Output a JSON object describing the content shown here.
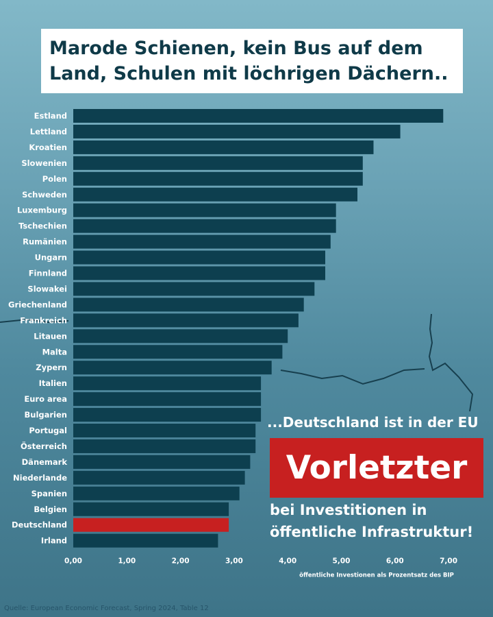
{
  "header": {
    "title_line1": "Marode Schienen, kein Bus auf dem",
    "title_line2": "Land, Schulen mit löchrigen Dächern.."
  },
  "chart_data": {
    "type": "bar",
    "orientation": "horizontal",
    "categories": [
      "Estland",
      "Lettland",
      "Kroatien",
      "Slowenien",
      "Polen",
      "Schweden",
      "Luxemburg",
      "Tschechien",
      "Rumänien",
      "Ungarn",
      "Finnland",
      "Slowakei",
      "Griechenland",
      "Frankreich",
      "Litauen",
      "Malta",
      "Zypern",
      "Italien",
      "Euro area",
      "Bulgarien",
      "Portugal",
      "Österreich",
      "Dänemark",
      "Niederlande",
      "Spanien",
      "Belgien",
      "Deutschland",
      "Irland"
    ],
    "values": [
      6.9,
      6.1,
      5.6,
      5.4,
      5.4,
      5.3,
      4.9,
      4.9,
      4.8,
      4.7,
      4.7,
      4.5,
      4.3,
      4.2,
      4.0,
      3.9,
      3.7,
      3.5,
      3.5,
      3.5,
      3.4,
      3.4,
      3.3,
      3.2,
      3.1,
      2.9,
      2.9,
      2.7
    ],
    "highlight": "Deutschland",
    "xlabel": "öffentliche Investionen als Prozentsatz des BIP",
    "xlim": [
      0,
      7
    ],
    "xticks": [
      "0,00",
      "1,00",
      "2,00",
      "3,00",
      "4,00",
      "5,00",
      "6,00",
      "7,00"
    ],
    "grid": false,
    "legend": "none",
    "colors": {
      "bar": "#0d3f4f",
      "highlight": "#c72020",
      "label": "#ffffff"
    }
  },
  "callout": {
    "headline": "...Deutschland ist in der EU",
    "big": "Vorletzter",
    "line1": "bei Investitionen in",
    "line2": "öffentliche Infrastruktur!"
  },
  "source": "Quelle: European Economic Forecast, Spring 2024, Table 12"
}
